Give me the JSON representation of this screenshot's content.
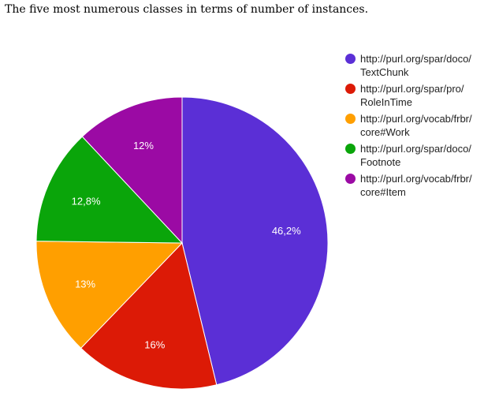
{
  "page": {
    "caption": "The five most numerous classes in terms of number of instances."
  },
  "chart_data": {
    "type": "pie",
    "legend_position": "right",
    "slices": [
      {
        "label": "http://purl.org/spar/doco/\nTextChunk",
        "value": 46.2,
        "value_label": "46,2%",
        "color": "#5b2fd6"
      },
      {
        "label": "http://purl.org/spar/pro/\nRoleInTime",
        "value": 16,
        "value_label": "16%",
        "color": "#dc1a06"
      },
      {
        "label": "http://purl.org/vocab/frbr/\ncore#Work",
        "value": 13,
        "value_label": "13%",
        "color": "#ff9f00"
      },
      {
        "label": "http://purl.org/spar/doco/\nFootnote",
        "value": 12.8,
        "value_label": "12,8%",
        "color": "#0aa50a"
      },
      {
        "label": "http://purl.org/vocab/frbr/\ncore#Item",
        "value": 12,
        "value_label": "12%",
        "color": "#9b0aa4"
      }
    ]
  }
}
